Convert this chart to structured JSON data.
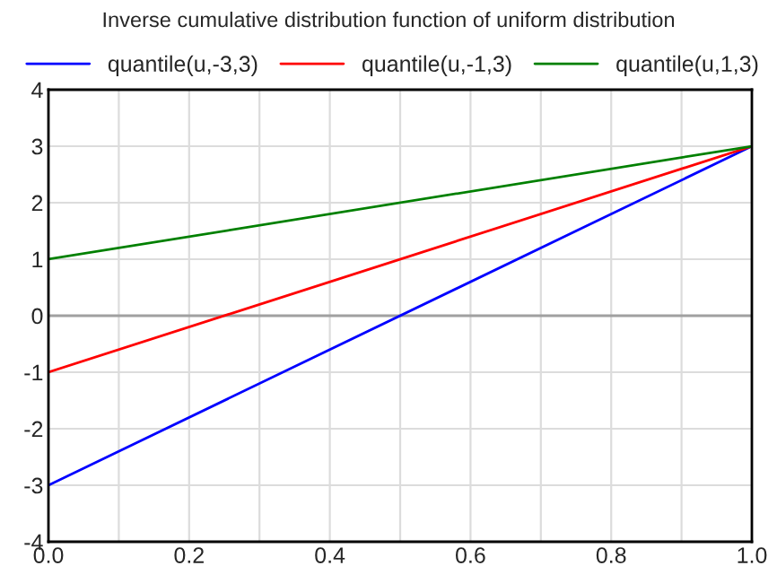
{
  "chart_data": {
    "type": "line",
    "title": "Inverse cumulative distribution function of uniform distribution",
    "x": [
      0,
      1
    ],
    "series": [
      {
        "name": "quantile(u,-3,3)",
        "color": "#0000ff",
        "values": [
          -3,
          3
        ]
      },
      {
        "name": "quantile(u,-1,3)",
        "color": "#ff0000",
        "values": [
          -1,
          3
        ]
      },
      {
        "name": "quantile(u,1,3)",
        "color": "#008000",
        "values": [
          1,
          3
        ]
      }
    ],
    "xlim": [
      0,
      1
    ],
    "ylim": [
      -4,
      4
    ],
    "xticks": [
      {
        "value": 0,
        "label": "0.0"
      },
      {
        "value": 0.1,
        "label": null
      },
      {
        "value": 0.2,
        "label": "0.2"
      },
      {
        "value": 0.3,
        "label": null
      },
      {
        "value": 0.4,
        "label": "0.4"
      },
      {
        "value": 0.5,
        "label": null
      },
      {
        "value": 0.6,
        "label": "0.6"
      },
      {
        "value": 0.7,
        "label": null
      },
      {
        "value": 0.8,
        "label": "0.8"
      },
      {
        "value": 0.9,
        "label": null
      },
      {
        "value": 1,
        "label": "1.0"
      }
    ],
    "yticks": [
      -4,
      -3,
      -2,
      -1,
      0,
      1,
      2,
      3,
      4
    ],
    "ref_lines": [
      {
        "axis": "y",
        "value": 0,
        "color": "#a0a0a0"
      }
    ],
    "grid": true,
    "legend": "top",
    "marker": "none",
    "line_style": "solid"
  }
}
